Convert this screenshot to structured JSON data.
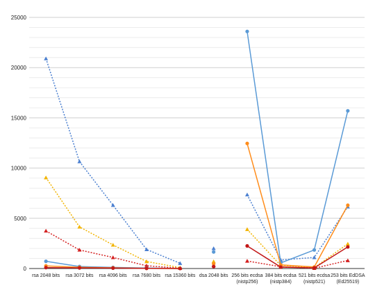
{
  "chart_data": {
    "type": "line",
    "title": "",
    "xlabel": "",
    "ylabel": "",
    "ylim": [
      0,
      25000
    ],
    "yticks": [
      "0",
      "5000",
      "10000",
      "15000",
      "20000",
      "25000"
    ],
    "grid": true,
    "categories": [
      [
        "rsa 2048 bits"
      ],
      [
        "rsa 3072 bits"
      ],
      [
        "rsa 4096 bits"
      ],
      [
        "rsa 7680 bits"
      ],
      [
        "rsa 15360 bits"
      ],
      [
        "dsa 2048 bits"
      ],
      [
        "256 bits ecdsa",
        "(nistp256)"
      ],
      [
        "384 bits ecdsa",
        "(nistp384)"
      ],
      [
        "521 bits ecdsa",
        "(nistp521)"
      ],
      [
        "253 bits EdDSA",
        "(Ed25519)"
      ]
    ],
    "series": [
      {
        "color": "#4a7fd0",
        "marker": "triangle",
        "dash": true,
        "values": [
          20900,
          10650,
          6300,
          1900,
          520,
          2000,
          7350,
          850,
          1100,
          6150
        ]
      },
      {
        "color": "#f2b400",
        "marker": "triangle",
        "dash": true,
        "values": [
          9050,
          4150,
          2350,
          700,
          90,
          700,
          3900,
          300,
          80,
          2450
        ]
      },
      {
        "color": "#d42020",
        "marker": "triangle",
        "dash": true,
        "values": [
          3750,
          1850,
          1100,
          280,
          30,
          330,
          750,
          180,
          30,
          800
        ]
      },
      {
        "color": "#5a9ad6",
        "marker": "circle",
        "dash": false,
        "values": [
          720,
          200,
          110,
          50,
          10,
          1650,
          23600,
          560,
          1850,
          15700
        ]
      },
      {
        "color": "#ff8c1a",
        "marker": "circle",
        "dash": false,
        "values": [
          260,
          120,
          70,
          20,
          5,
          470,
          12450,
          360,
          150,
          6300
        ]
      },
      {
        "color": "#c21818",
        "marker": "circle",
        "dash": false,
        "values": [
          90,
          60,
          40,
          15,
          3,
          200,
          2250,
          140,
          60,
          2150
        ]
      }
    ]
  }
}
